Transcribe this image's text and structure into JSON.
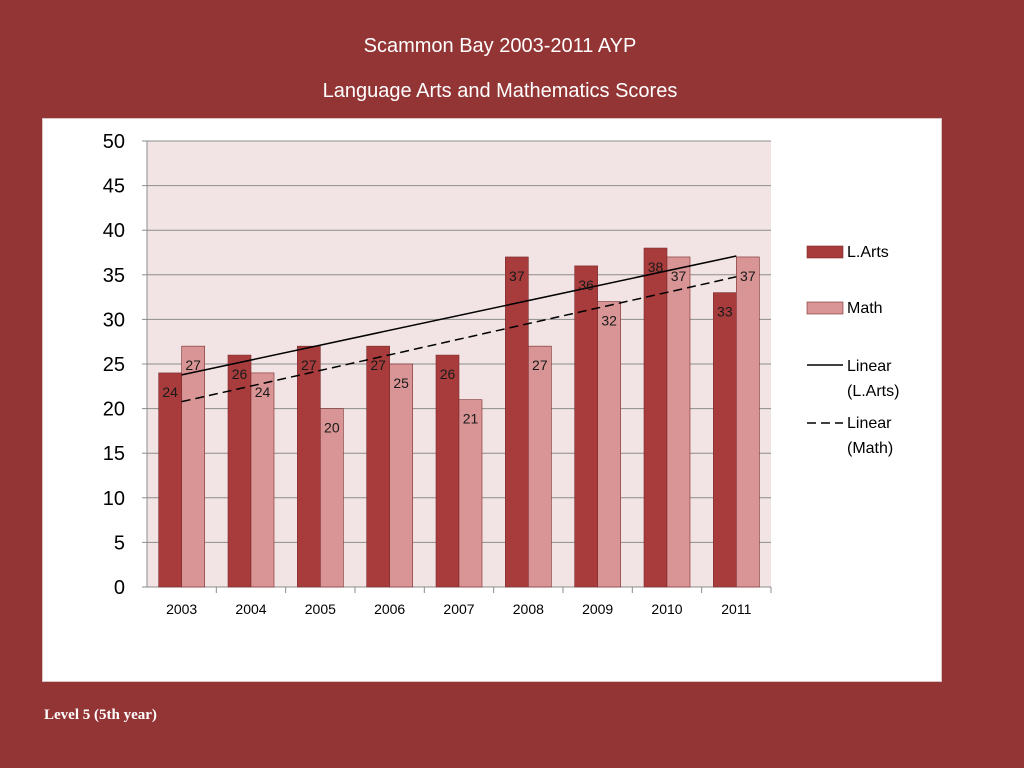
{
  "header": {
    "title": "Scammon Bay 2003-2011 AYP",
    "subtitle": "Language Arts and Mathematics Scores"
  },
  "footer": {
    "text": "Level 5 (5th year)"
  },
  "colors": {
    "background": "#943535",
    "plot_area": "#f2e4e4",
    "larts": "#a83c3c",
    "math": "#d99595",
    "gridline": "#8c8c8c"
  },
  "chart_data": {
    "type": "bar",
    "categories": [
      "2003",
      "2004",
      "2005",
      "2006",
      "2007",
      "2008",
      "2009",
      "2010",
      "2011"
    ],
    "series": [
      {
        "name": "L.Arts",
        "values": [
          24,
          26,
          27,
          27,
          26,
          37,
          36,
          38,
          33
        ]
      },
      {
        "name": "Math",
        "values": [
          27,
          24,
          20,
          25,
          21,
          27,
          32,
          37,
          37
        ]
      }
    ],
    "trendlines": [
      {
        "name": "Linear (L.Arts)",
        "series": "L.Arts",
        "style": "solid",
        "type": "linear"
      },
      {
        "name": "Linear (Math)",
        "series": "Math",
        "style": "dashed",
        "type": "linear"
      }
    ],
    "ylim": [
      0,
      50
    ],
    "yticks": [
      "0",
      "5",
      "10",
      "15",
      "20",
      "25",
      "30",
      "35",
      "40",
      "45",
      "50"
    ],
    "grid": true,
    "legend_position": "right",
    "data_labels": true
  }
}
